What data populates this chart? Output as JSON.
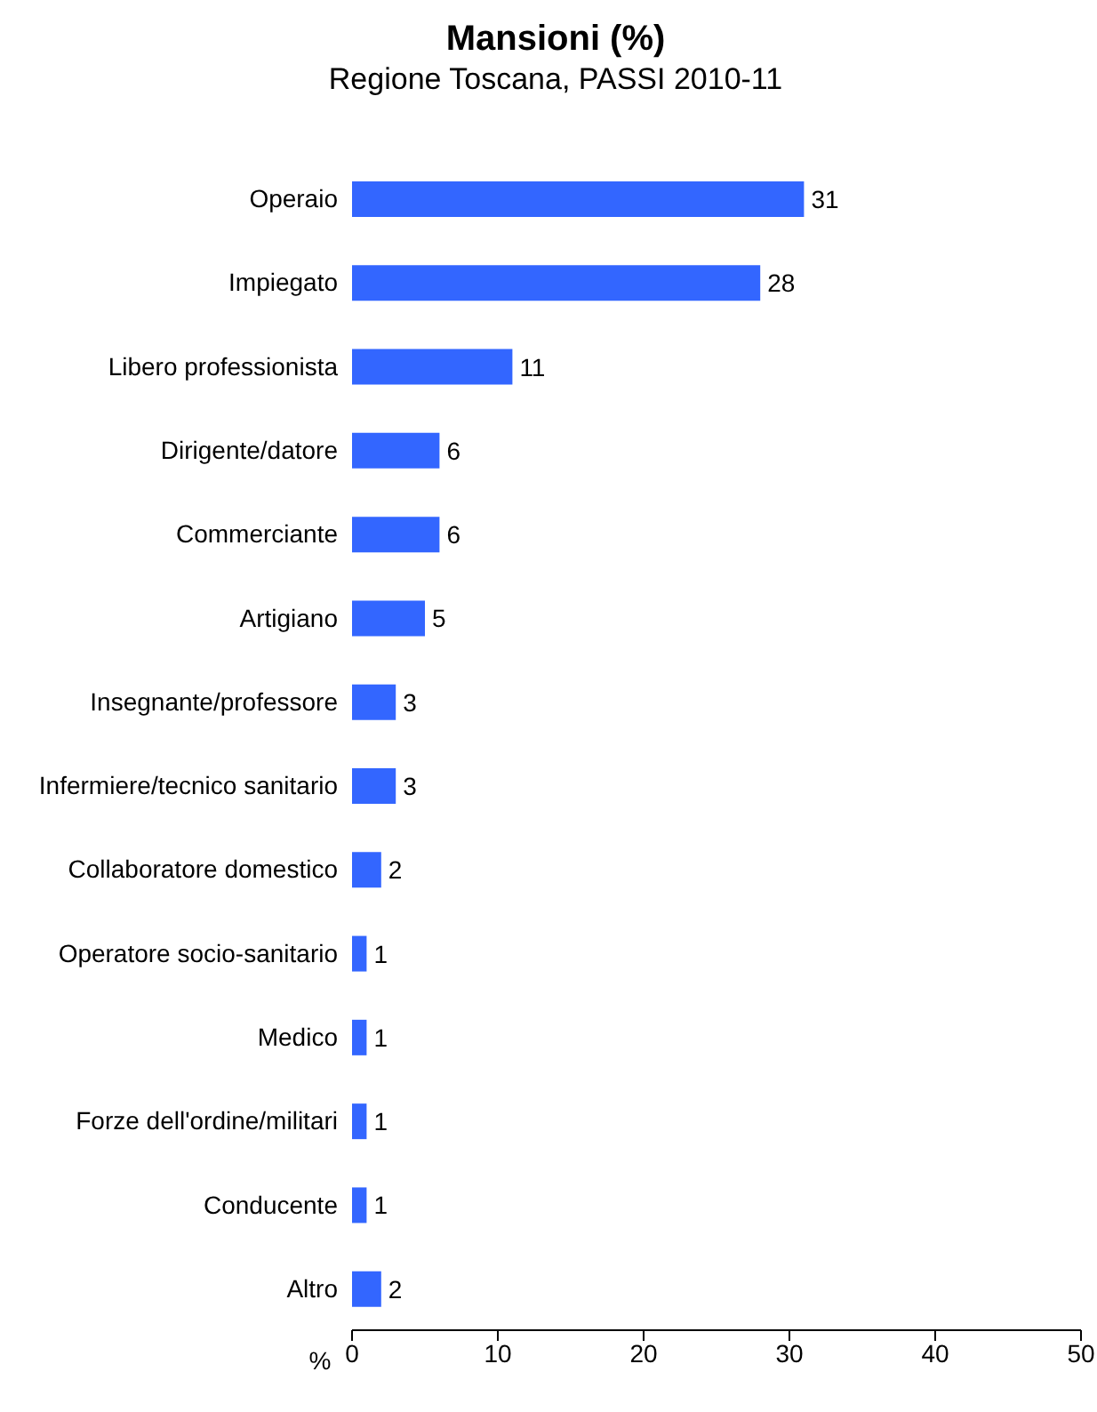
{
  "chart_data": {
    "type": "bar",
    "orientation": "horizontal",
    "title": "Mansioni (%)",
    "subtitle": "Regione Toscana, PASSI 2010-11",
    "xlabel": "%",
    "categories": [
      "Operaio",
      "Impiegato",
      "Libero professionista",
      "Dirigente/datore",
      "Commerciante",
      "Artigiano",
      "Insegnante/professore",
      "Infermiere/tecnico sanitario",
      "Collaboratore domestico",
      "Operatore socio-sanitario",
      "Medico",
      "Forze dell'ordine/militari",
      "Conducente",
      "Altro"
    ],
    "values": [
      31,
      28,
      11,
      6,
      6,
      5,
      3,
      3,
      2,
      1,
      1,
      1,
      1,
      2
    ],
    "color": "#3366ff",
    "xlim": [
      0,
      50
    ],
    "xticks": [
      0,
      10,
      20,
      30,
      40,
      50
    ],
    "grid": false,
    "data_labels": true
  }
}
